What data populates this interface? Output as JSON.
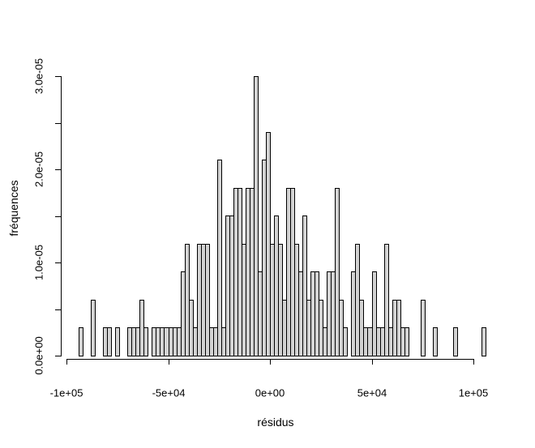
{
  "figure": {
    "background": "#ffffff"
  },
  "chart_data": {
    "type": "bar",
    "subtype": "histogram",
    "title": "",
    "xlabel": "résidus",
    "ylabel": "fréquences",
    "grid": false,
    "legend": null,
    "bar_fill": "#d3d3d3",
    "bar_border": "#000000",
    "xlim": [
      -100000,
      100000
    ],
    "ylim": [
      0,
      3e-05
    ],
    "bin_width": 2000,
    "bin_start": -94000,
    "density_unit": 3e-06,
    "counts": [
      1,
      0,
      0,
      2,
      0,
      0,
      1,
      1,
      0,
      1,
      0,
      0,
      1,
      1,
      1,
      2,
      1,
      0,
      1,
      1,
      1,
      1,
      1,
      1,
      1,
      3,
      4,
      2,
      1,
      4,
      4,
      4,
      1,
      1,
      7,
      1,
      5,
      5,
      6,
      6,
      4,
      6,
      6,
      10,
      3,
      7,
      8,
      4,
      5,
      4,
      2,
      6,
      6,
      4,
      3,
      5,
      2,
      3,
      3,
      2,
      1,
      3,
      3,
      6,
      2,
      1,
      0,
      3,
      4,
      2,
      1,
      1,
      3,
      1,
      1,
      4,
      1,
      2,
      2,
      1,
      1,
      0,
      0,
      0,
      2,
      0,
      0,
      1,
      0,
      0,
      0,
      0,
      1,
      0,
      0,
      0,
      0,
      0,
      0,
      1
    ],
    "x_ticks": [
      {
        "value": -100000,
        "label": "-1e+05"
      },
      {
        "value": -50000,
        "label": "-5e+04"
      },
      {
        "value": 0,
        "label": "0e+00"
      },
      {
        "value": 50000,
        "label": "5e+04"
      },
      {
        "value": 100000,
        "label": "1e+05"
      }
    ],
    "y_ticks_labeled": [
      {
        "value": 0,
        "label": "0.0e+00"
      },
      {
        "value": 1e-05,
        "label": "1.0e-05"
      },
      {
        "value": 2e-05,
        "label": "2.0e-05"
      },
      {
        "value": 3e-05,
        "label": "3.0e-05"
      }
    ],
    "y_minor_tick_step": 5e-06
  }
}
